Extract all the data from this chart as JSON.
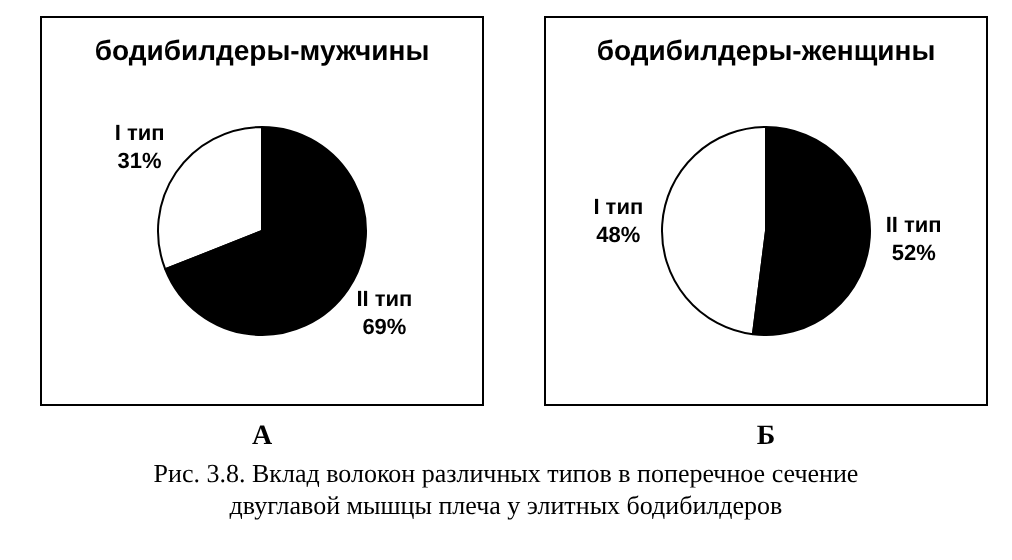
{
  "chart_data": [
    {
      "type": "pie",
      "title": "бодибилдеры-мужчины",
      "categories": [
        "I тип",
        "II тип"
      ],
      "values": [
        31,
        69
      ],
      "colors": [
        "#ffffff",
        "#000000"
      ],
      "value_labels": [
        "31%",
        "69%"
      ],
      "legend": false,
      "annotations": [
        "А",
        "Рис. 3.8. Вклад волокон различных типов в поперечное сечение двуглавой мышцы плеча у элитных бодибилдеров"
      ]
    },
    {
      "type": "pie",
      "title": "бодибилдеры-женщины",
      "categories": [
        "I тип",
        "II тип"
      ],
      "values": [
        48,
        52
      ],
      "colors": [
        "#ffffff",
        "#000000"
      ],
      "value_labels": [
        "48%",
        "52%"
      ],
      "legend": false,
      "annotations": [
        "Б"
      ]
    }
  ]
}
